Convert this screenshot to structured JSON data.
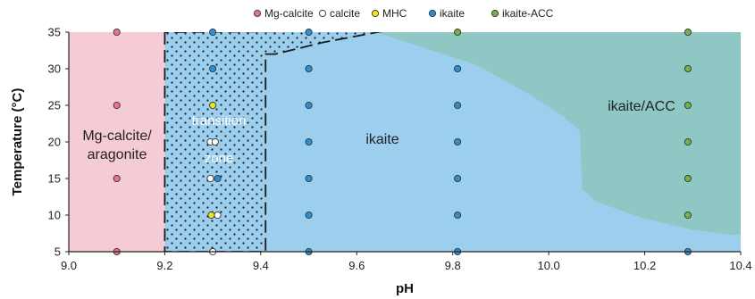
{
  "chart_data": {
    "type": "scatter",
    "xlabel": "pH",
    "ylabel": "Temperature (°C)",
    "xlim": [
      9.0,
      10.4
    ],
    "ylim": [
      5,
      35
    ],
    "x_ticks": [
      "9.0",
      "9.2",
      "9.4",
      "9.6",
      "9.8",
      "10.0",
      "10.2",
      "10.4"
    ],
    "y_ticks": [
      "5",
      "10",
      "15",
      "20",
      "25",
      "30",
      "35"
    ],
    "legend_position": "top-center",
    "legend": [
      {
        "name": "Mg-calcite",
        "color": "#e8718d"
      },
      {
        "name": "calcite",
        "color": "#ffffff"
      },
      {
        "name": "MHC",
        "color": "#f2e21c"
      },
      {
        "name": "ikaite",
        "color": "#2a8fd4"
      },
      {
        "name": "ikaite-ACC",
        "color": "#74b14b"
      }
    ],
    "regions": [
      {
        "label": "Mg-calcite/ aragonite",
        "lines": [
          "Mg-calcite/",
          "aragonite"
        ],
        "color": "#f5ccd6",
        "x_range": [
          9.0,
          9.2
        ]
      },
      {
        "label": "transition zone",
        "lines": [
          "transition",
          "zone"
        ],
        "pattern": "dotted",
        "x_range": [
          9.2,
          9.41
        ]
      },
      {
        "label": "ikaite",
        "lines": [
          "ikaite"
        ],
        "color": "#9ccfee"
      },
      {
        "label": "ikaite/ACC",
        "lines": [
          "ikaite/ACC"
        ],
        "color": "#8fc7c5"
      }
    ],
    "series": [
      {
        "name": "Mg-calcite",
        "color": "#e8718d",
        "points": [
          [
            9.1,
            5
          ],
          [
            9.1,
            15
          ],
          [
            9.1,
            25
          ],
          [
            9.1,
            35
          ]
        ]
      },
      {
        "name": "calcite",
        "color": "#ffffff",
        "points": [
          [
            9.3,
            5
          ],
          [
            9.295,
            15
          ],
          [
            9.31,
            10
          ],
          [
            9.295,
            20
          ],
          [
            9.305,
            20
          ]
        ]
      },
      {
        "name": "MHC",
        "color": "#f2e21c",
        "points": [
          [
            9.3,
            25
          ],
          [
            9.297,
            10
          ]
        ]
      },
      {
        "name": "ikaite",
        "color": "#2a8fd4",
        "points": [
          [
            9.3,
            35
          ],
          [
            9.3,
            30
          ],
          [
            9.31,
            15
          ],
          [
            9.5,
            5
          ],
          [
            9.5,
            10
          ],
          [
            9.5,
            15
          ],
          [
            9.5,
            20
          ],
          [
            9.5,
            25
          ],
          [
            9.5,
            30
          ],
          [
            9.5,
            35
          ],
          [
            9.81,
            5
          ],
          [
            9.81,
            10
          ],
          [
            9.81,
            15
          ],
          [
            9.81,
            20
          ],
          [
            9.81,
            25
          ],
          [
            9.81,
            30
          ],
          [
            10.29,
            5
          ]
        ]
      },
      {
        "name": "ikaite-ACC",
        "color": "#74b14b",
        "points": [
          [
            9.81,
            35
          ],
          [
            10.29,
            10
          ],
          [
            10.29,
            15
          ],
          [
            10.29,
            20
          ],
          [
            10.29,
            25
          ],
          [
            10.29,
            30
          ],
          [
            10.29,
            35
          ]
        ]
      }
    ],
    "acc_boundary": [
      [
        9.64,
        35
      ],
      [
        9.85,
        30.5
      ],
      [
        9.96,
        26.5
      ],
      [
        10.03,
        23.5
      ],
      [
        10.065,
        21.5
      ],
      [
        10.07,
        13.5
      ],
      [
        10.1,
        11.8
      ],
      [
        10.2,
        9.5
      ],
      [
        10.3,
        8
      ],
      [
        10.38,
        7.3
      ],
      [
        10.4,
        7.4
      ]
    ],
    "transition_boundary": [
      [
        9.2,
        35
      ],
      [
        9.2,
        5
      ],
      [
        9.41,
        5
      ],
      [
        9.41,
        32
      ],
      [
        9.43,
        32
      ],
      [
        9.53,
        33.6
      ],
      [
        9.66,
        35.2
      ]
    ]
  }
}
